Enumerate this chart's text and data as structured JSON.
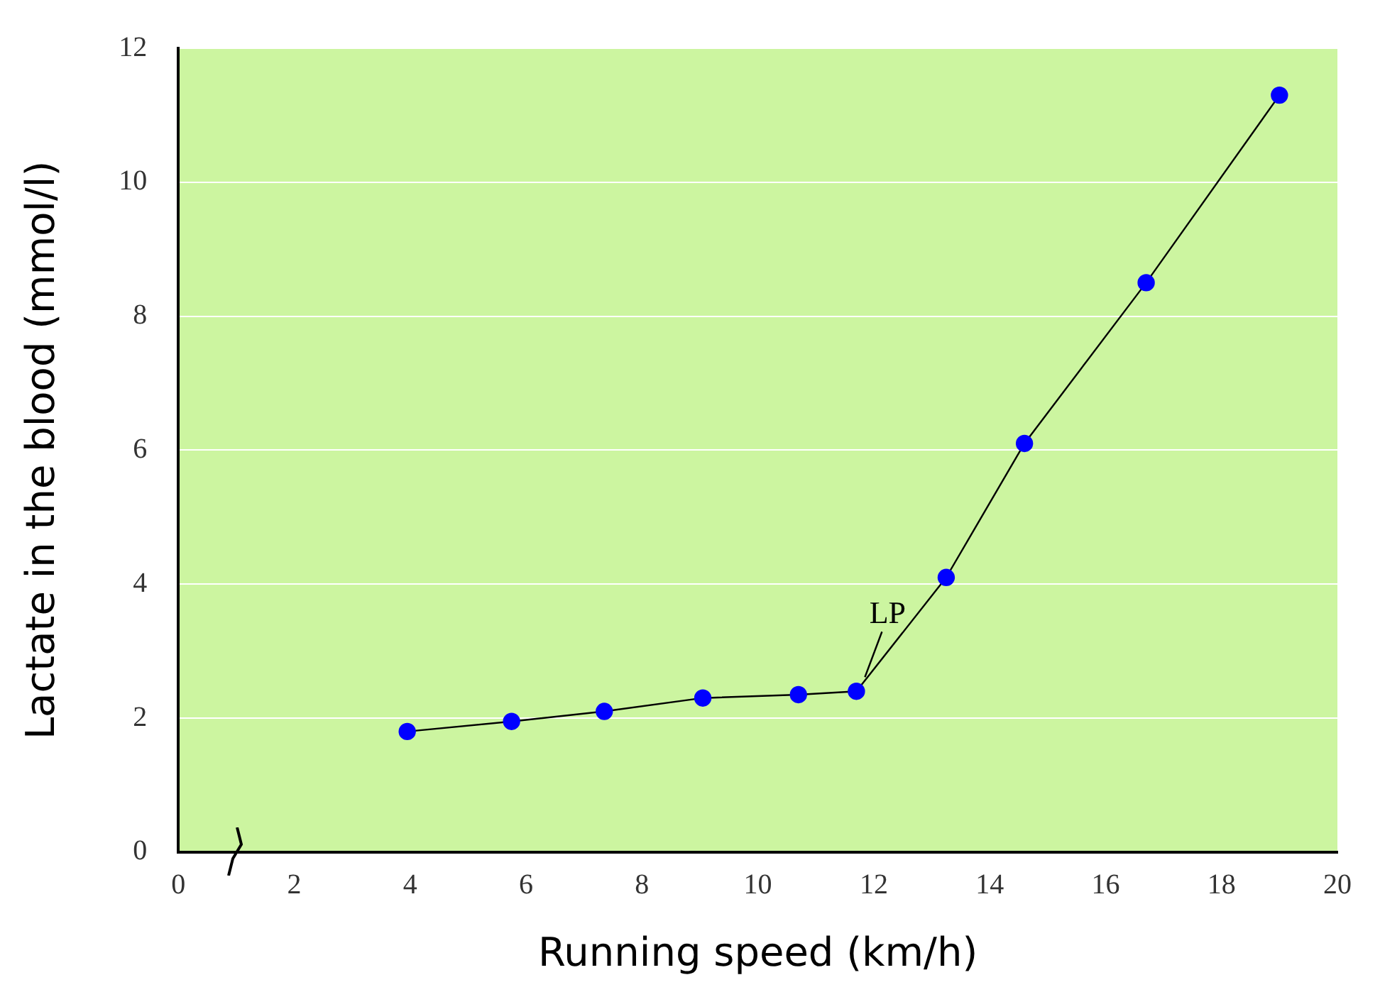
{
  "chart_data": {
    "type": "line",
    "xlabel": "Running speed (km/h)",
    "ylabel": "Lactate in the blood (mmol/l)",
    "x": [
      3.95,
      5.75,
      7.35,
      9.05,
      10.7,
      11.7,
      13.25,
      14.6,
      16.7,
      19.0
    ],
    "series": [
      {
        "color": "#0000ff",
        "values": [
          1.8,
          1.95,
          2.1,
          2.3,
          2.35,
          2.4,
          4.1,
          6.1,
          8.5,
          11.3
        ]
      }
    ],
    "xlim": [
      0,
      20
    ],
    "xticks": [
      0,
      2,
      4,
      6,
      8,
      10,
      12,
      14,
      16,
      18,
      20
    ],
    "ylim": [
      0,
      12
    ],
    "yticks": [
      0,
      2,
      4,
      6,
      8,
      10,
      12
    ],
    "grid": "y",
    "legend": false,
    "marker": "circle",
    "line_style": "solid",
    "annotations": [
      {
        "text": "LP",
        "x": 11.7,
        "y": 2.4
      }
    ]
  }
}
